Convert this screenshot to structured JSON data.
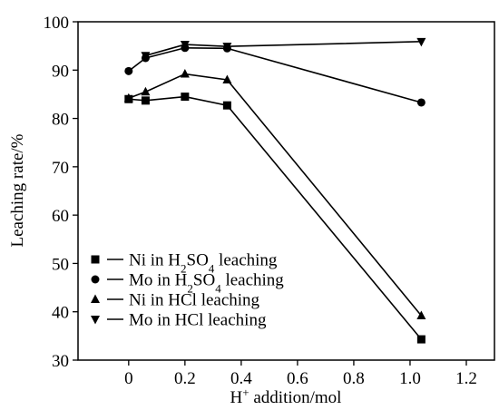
{
  "chart_data": {
    "type": "line",
    "title": "",
    "xlabel": "H+ addition/mol",
    "xlabel_parts": {
      "base": "H",
      "sup": "+",
      "rest": " addition/mol"
    },
    "ylabel": "Leaching rate/%",
    "xlim": [
      -0.18,
      1.3
    ],
    "ylim": [
      30,
      100
    ],
    "xticks": [
      0,
      0.2,
      0.4,
      0.6,
      0.8,
      1.0,
      1.2
    ],
    "xtick_labels": [
      "0",
      "0.2",
      "0.4",
      "0.6",
      "0.8",
      "1.0",
      "1.2"
    ],
    "yticks": [
      30,
      40,
      50,
      60,
      70,
      80,
      90,
      100
    ],
    "ytick_labels": [
      "30",
      "40",
      "50",
      "60",
      "70",
      "80",
      "90",
      "100"
    ],
    "grid": false,
    "legend_position": "bottom-left",
    "series": [
      {
        "name": "Ni in H2SO4 leaching",
        "label_parts": [
          "Ni in H",
          "2",
          "SO",
          "4",
          " leaching"
        ],
        "marker": "square",
        "x": [
          0,
          0.06,
          0.2,
          0.35,
          1.04
        ],
        "y": [
          84.0,
          83.7,
          84.5,
          82.7,
          34.3
        ]
      },
      {
        "name": "Mo in H2SO4 leaching",
        "label_parts": [
          "Mo in H",
          "2",
          "SO",
          "4",
          " leaching"
        ],
        "marker": "circle",
        "x": [
          0,
          0.06,
          0.2,
          0.35,
          1.04
        ],
        "y": [
          89.8,
          92.5,
          94.6,
          94.5,
          83.3
        ]
      },
      {
        "name": "Ni in HCl leaching",
        "label_parts": [
          "Ni in HCl leaching"
        ],
        "marker": "triangle-up",
        "x": [
          0,
          0.06,
          0.2,
          0.35,
          1.04
        ],
        "y": [
          84.2,
          85.5,
          89.2,
          88.0,
          39.2
        ]
      },
      {
        "name": "Mo in HCl leaching",
        "label_parts": [
          "Mo in HCl leaching"
        ],
        "marker": "triangle-down",
        "x": [
          0.06,
          0.2,
          0.35,
          1.04
        ],
        "y": [
          93.0,
          95.3,
          94.9,
          95.9
        ]
      }
    ]
  }
}
